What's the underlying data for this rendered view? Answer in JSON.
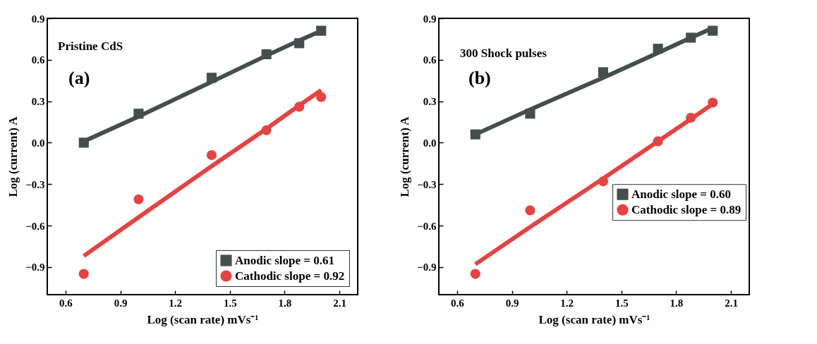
{
  "chart_data": [
    {
      "type": "scatter",
      "xlabel": "Log (scan rate) mVs⁻¹",
      "ylabel": "Log (current) A",
      "annotations": [
        "Pristine CdS",
        "(a)"
      ],
      "xlim": [
        0.5,
        2.2
      ],
      "ylim": [
        -1.1,
        0.9
      ],
      "xticks": [
        0.6,
        0.9,
        1.2,
        1.5,
        1.8,
        2.1
      ],
      "yticks": [
        -0.9,
        -0.6,
        -0.3,
        {
          "value": 0,
          "label": "0.0"
        },
        0.3,
        0.6,
        0.9
      ],
      "grid": false,
      "legend": "bottom right",
      "x": [
        0.7,
        1.0,
        1.4,
        1.7,
        1.88,
        2.0
      ],
      "series": [
        {
          "name": "Anodic slope = 0.61",
          "color": "#454d4d",
          "marker": "square",
          "values": [
            0.0,
            0.21,
            0.47,
            0.64,
            0.72,
            0.81
          ]
        },
        {
          "name": "Cathodic slope = 0.92",
          "color": "#e84141",
          "marker": "circle",
          "values": [
            -0.95,
            -0.41,
            -0.09,
            0.09,
            0.26,
            0.33
          ]
        },
        {
          "type": "line",
          "color": "#454d4d",
          "values": [
            0.01,
            0.19,
            0.44,
            0.63,
            0.74,
            0.81
          ]
        },
        {
          "type": "line",
          "color": "#e84141",
          "values": [
            -0.82,
            -0.54,
            -0.17,
            0.1,
            0.27,
            0.38
          ]
        }
      ]
    },
    {
      "type": "scatter",
      "xlabel": "Log (scan rate) mVs⁻¹",
      "ylabel": "Log (current) A",
      "annotations": [
        "300 Shock pulses",
        "(b)"
      ],
      "xlim": [
        0.5,
        2.2
      ],
      "ylim": [
        -1.1,
        0.9
      ],
      "xticks": [
        0.6,
        0.9,
        1.2,
        1.5,
        1.8,
        2.1
      ],
      "yticks": [
        -0.9,
        -0.6,
        -0.3,
        {
          "value": 0,
          "label": "0.0"
        },
        0.3,
        0.6,
        0.9
      ],
      "grid": false,
      "legend": "right",
      "x": [
        0.7,
        1.0,
        1.4,
        1.7,
        1.88,
        2.0
      ],
      "series": [
        {
          "name": "Anodic slope = 0.60",
          "color": "#454d4d",
          "marker": "square",
          "values": [
            0.06,
            0.21,
            0.51,
            0.68,
            0.76,
            0.81
          ]
        },
        {
          "name": "Cathodic slope = 0.89",
          "color": "#e84141",
          "marker": "circle",
          "values": [
            -0.95,
            -0.49,
            -0.28,
            0.01,
            0.18,
            0.29
          ]
        },
        {
          "type": "line",
          "color": "#454d4d",
          "values": [
            0.06,
            0.24,
            0.47,
            0.65,
            0.76,
            0.83
          ]
        },
        {
          "type": "line",
          "color": "#e84141",
          "values": [
            -0.88,
            -0.61,
            -0.26,
            0.01,
            0.17,
            0.28
          ]
        }
      ]
    }
  ]
}
